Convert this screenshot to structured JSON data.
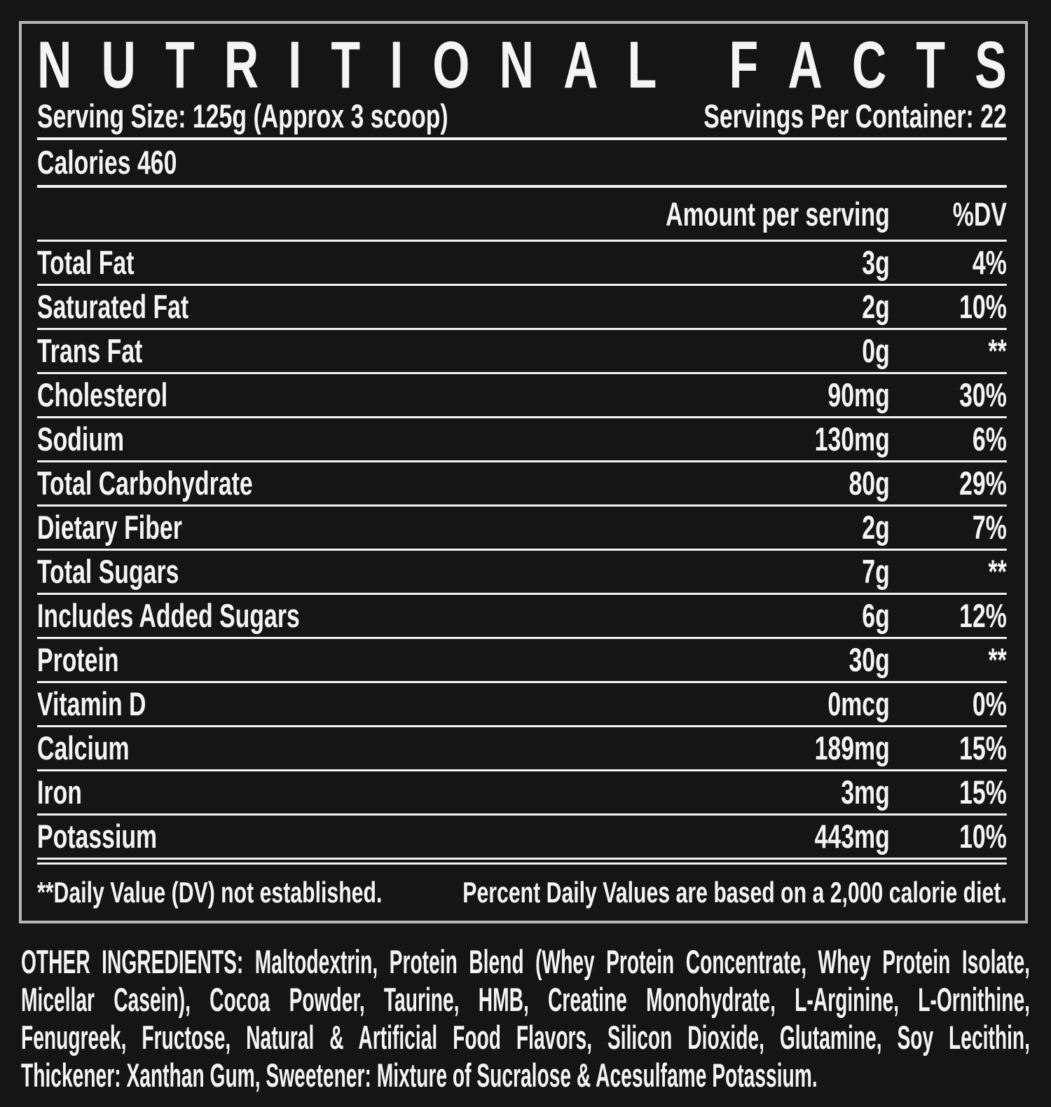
{
  "label": {
    "title": "NUTRITIONAL FACTS",
    "serving_size": "Serving Size: 125g (Approx 3 scoop)",
    "servings_per_container": "Servings Per Container: 22",
    "calories": "Calories 460",
    "header": {
      "amount": "Amount per serving",
      "dv": "%DV"
    },
    "rows": [
      {
        "name": "Total Fat",
        "amount": "3g",
        "dv": "4%"
      },
      {
        "name": "Saturated Fat",
        "amount": "2g",
        "dv": "10%"
      },
      {
        "name": "Trans Fat",
        "amount": "0g",
        "dv": "**"
      },
      {
        "name": "Cholesterol",
        "amount": "90mg",
        "dv": "30%"
      },
      {
        "name": "Sodium",
        "amount": "130mg",
        "dv": "6%"
      },
      {
        "name": "Total Carbohydrate",
        "amount": "80g",
        "dv": "29%"
      },
      {
        "name": "Dietary Fiber",
        "amount": "2g",
        "dv": "7%"
      },
      {
        "name": "Total Sugars",
        "amount": "7g",
        "dv": "**"
      },
      {
        "name": "Includes Added Sugars",
        "amount": "6g",
        "dv": "12%"
      },
      {
        "name": "Protein",
        "amount": "30g",
        "dv": "**"
      },
      {
        "name": "Vitamin D",
        "amount": "0mcg",
        "dv": "0%"
      },
      {
        "name": "Calcium",
        "amount": "189mg",
        "dv": "15%"
      },
      {
        "name": "Iron",
        "amount": "3mg",
        "dv": "15%"
      },
      {
        "name": "Potassium",
        "amount": "443mg",
        "dv": "10%"
      }
    ],
    "footnotes": {
      "left": "**Daily Value (DV) not established.",
      "right": "Percent Daily Values are based on a 2,000 calorie diet."
    },
    "other_ingredients_lines": [
      "OTHER INGREDIENTS: Maltodextrin, Protein Blend (Whey Protein Concentrate, Whey Protein Isolate,",
      "Micellar Casein), Cocoa Powder, Taurine, HMB, Creatine Monohydrate, L-Arginine, L-Ornithine,",
      "Fenugreek, Fructose, Natural & Artificial Food Flavors, Silicon Dioxide, Glutamine, Soy Lecithin,",
      "Thickener: Xanthan Gum, Sweetener: Mixture of Sucralose & Acesulfame Potassium."
    ],
    "colors": {
      "background": "#151515",
      "text": "#f4f4f4",
      "border": "#b6b6b6"
    }
  }
}
